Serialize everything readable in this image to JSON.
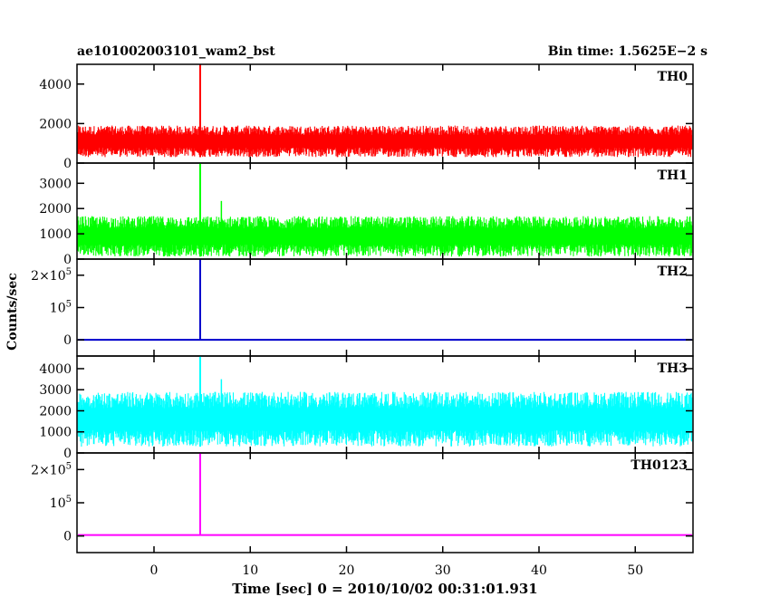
{
  "header": {
    "title": "ae101002003101_wam2_bst",
    "bin_time": "Bin time: 1.5625E−2 s"
  },
  "axes": {
    "ylabel": "Counts/sec",
    "xlabel": "Time [sec] 0 = 2010/10/02 00:31:01.931"
  },
  "chart_data": {
    "type": "line",
    "xlim": [
      -8,
      56
    ],
    "x_ticks": [
      0,
      10,
      20,
      30,
      40,
      50
    ],
    "x_tick_labels": [
      "0",
      "10",
      "20",
      "30",
      "40",
      "50"
    ],
    "grid": false,
    "panels": [
      {
        "name": "TH0",
        "color": "#ff0000",
        "ylim": [
          0,
          5000
        ],
        "y_ticks": [
          0,
          2000,
          4000
        ],
        "y_tick_labels": [
          "0",
          "2000",
          "4000"
        ],
        "baseline_range": [
          300,
          1900
        ],
        "peak": {
          "x": 4.8,
          "y": 5000
        }
      },
      {
        "name": "TH1",
        "color": "#00ff00",
        "ylim": [
          0,
          3800
        ],
        "y_ticks": [
          0,
          1000,
          2000,
          3000
        ],
        "y_tick_labels": [
          "0",
          "1000",
          "2000",
          "3000"
        ],
        "baseline_range": [
          100,
          1700
        ],
        "peak": {
          "x": 4.8,
          "y": 3800
        },
        "secondary_spike": {
          "x": 7.0,
          "y": 2300
        }
      },
      {
        "name": "TH2",
        "color": "#0000cc",
        "ylim": [
          -50000,
          250000
        ],
        "y_ticks": [
          0,
          100000,
          200000
        ],
        "y_tick_labels": [
          "0",
          "10^5",
          "2×10^5"
        ],
        "baseline_range": [
          0,
          0
        ],
        "peak": {
          "x": 4.8,
          "y": 250000
        }
      },
      {
        "name": "TH3",
        "color": "#00ffff",
        "ylim": [
          0,
          4600
        ],
        "y_ticks": [
          0,
          1000,
          2000,
          3000,
          4000
        ],
        "y_tick_labels": [
          "0",
          "1000",
          "2000",
          "3000",
          "4000"
        ],
        "baseline_range": [
          300,
          2900
        ],
        "peak": {
          "x": 4.8,
          "y": 4600
        },
        "secondary_spike": {
          "x": 7.0,
          "y": 3500
        }
      },
      {
        "name": "TH0123",
        "color": "#ff00ff",
        "ylim": [
          -50000,
          250000
        ],
        "y_ticks": [
          0,
          100000,
          200000
        ],
        "y_tick_labels": [
          "0",
          "10^5",
          "2×10^5"
        ],
        "baseline_range": [
          3000,
          3000
        ],
        "peak": {
          "x": 4.8,
          "y": 250000
        }
      }
    ]
  }
}
